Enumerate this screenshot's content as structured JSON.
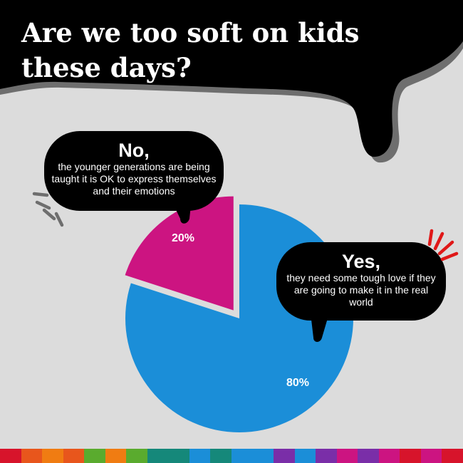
{
  "title": "Are we too soft on kids these days?",
  "colors": {
    "background": "#dcdcdc",
    "yes": "#1b8ed8",
    "no": "#cc1481",
    "bubble": "#000000",
    "shadow": "#6e6e6e",
    "accent_grey": "#6e6e6e",
    "accent_red": "#e01818"
  },
  "bubbles": {
    "no": {
      "heading": "No,",
      "body": "the younger generations are being taught it is OK to express themselves and their emotions"
    },
    "yes": {
      "heading": "Yes,",
      "body": "they need some tough love if they are going to make it in the real world"
    }
  },
  "chart_data": {
    "type": "pie",
    "slices": [
      {
        "label": "Yes",
        "value": 80,
        "value_label": "80%",
        "color": "#1b8ed8"
      },
      {
        "label": "No",
        "value": 20,
        "value_label": "20%",
        "color": "#cc1481"
      }
    ],
    "exploded_slice": "No"
  },
  "footer_strip": [
    "#d7142b",
    "#e8561c",
    "#f07c12",
    "#e8561c",
    "#5aab2e",
    "#f07c12",
    "#5aab2e",
    "#15887a",
    "#15887a",
    "#1b8ed8",
    "#15887a",
    "#1b8ed8",
    "#1b8ed8",
    "#7a2ea8",
    "#1b8ed8",
    "#7a2ea8",
    "#cc1481",
    "#7a2ea8",
    "#cc1481",
    "#d7142b",
    "#cc1481",
    "#d7142b"
  ]
}
